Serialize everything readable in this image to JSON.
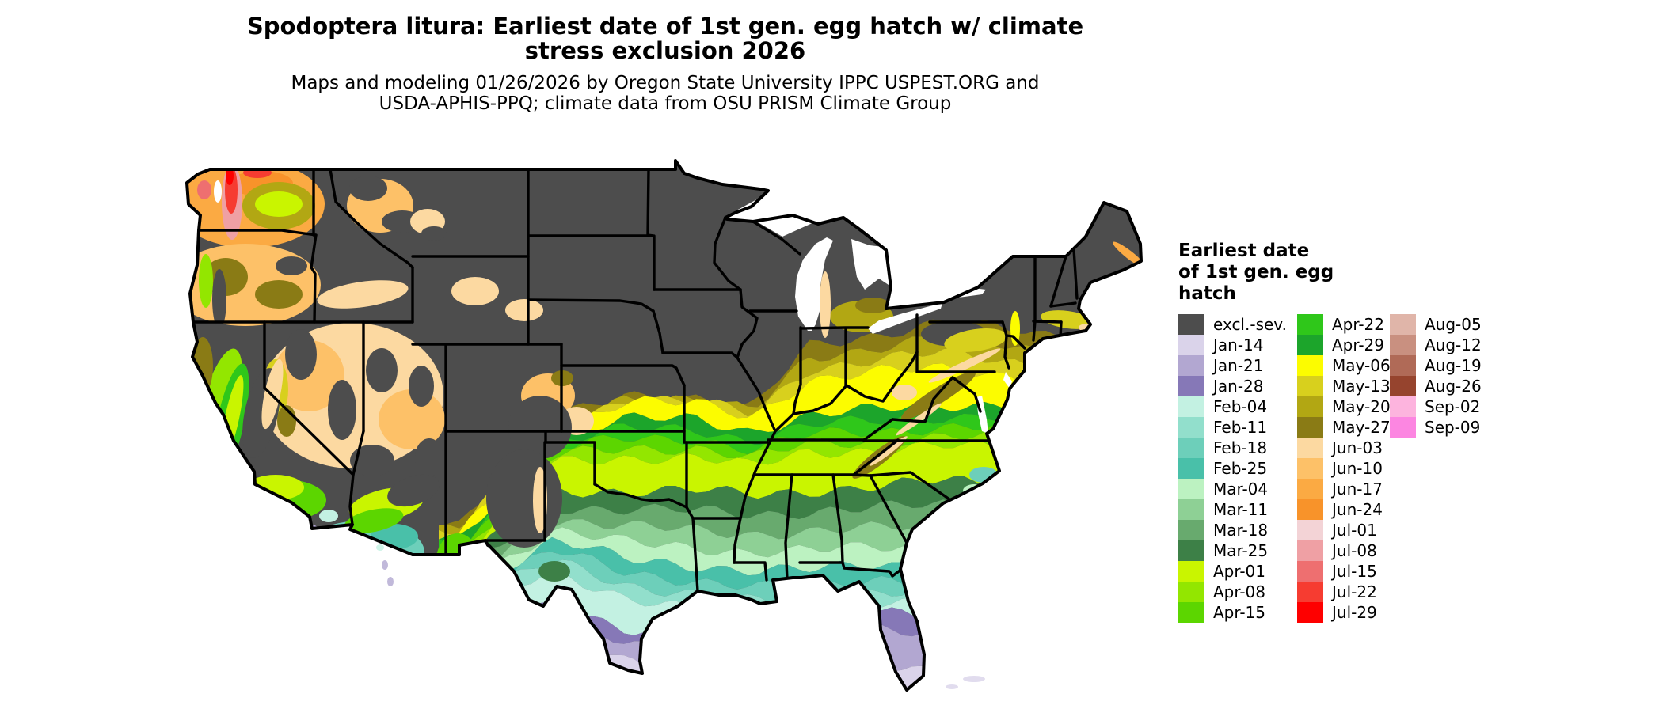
{
  "title": {
    "line1": "Spodoptera litura: Earliest date of 1st gen. egg hatch w/ climate",
    "line2": "stress exclusion 2026"
  },
  "subtitle": {
    "line1": "Maps and modeling 01/26/2026 by Oregon State University IPPC USPEST.ORG and",
    "line2": "USDA-APHIS-PPQ; climate data from OSU PRISM Climate Group"
  },
  "legend": {
    "title_lines": [
      "Earliest date",
      "of 1st gen. egg",
      "hatch"
    ],
    "columns": [
      [
        {
          "label": "excl.-sev.",
          "color": "#4d4d4d"
        },
        {
          "label": "Jan-14",
          "color": "#dad3ea"
        },
        {
          "label": "Jan-21",
          "color": "#b2a7d1"
        },
        {
          "label": "Jan-28",
          "color": "#8678b7"
        },
        {
          "label": "Feb-04",
          "color": "#c3f1e2"
        },
        {
          "label": "Feb-11",
          "color": "#92dfcc"
        },
        {
          "label": "Feb-18",
          "color": "#6dcfba"
        },
        {
          "label": "Feb-25",
          "color": "#49c0a9"
        },
        {
          "label": "Mar-04",
          "color": "#bcf2c1"
        },
        {
          "label": "Mar-11",
          "color": "#8ed095"
        },
        {
          "label": "Mar-18",
          "color": "#68aa6e"
        },
        {
          "label": "Mar-25",
          "color": "#3d8047"
        },
        {
          "label": "Apr-01",
          "color": "#c9f500"
        },
        {
          "label": "Apr-08",
          "color": "#93e600"
        },
        {
          "label": "Apr-15",
          "color": "#5cd600"
        }
      ],
      [
        {
          "label": "Apr-22",
          "color": "#2fc71a"
        },
        {
          "label": "Apr-29",
          "color": "#1ca52b"
        },
        {
          "label": "May-06",
          "color": "#fcfc00"
        },
        {
          "label": "May-13",
          "color": "#d8d01d"
        },
        {
          "label": "May-20",
          "color": "#b2a713"
        },
        {
          "label": "May-27",
          "color": "#8a7b15"
        },
        {
          "label": "Jun-03",
          "color": "#fcd9a1"
        },
        {
          "label": "Jun-10",
          "color": "#fdc168"
        },
        {
          "label": "Jun-17",
          "color": "#fbaa43"
        },
        {
          "label": "Jun-24",
          "color": "#f8932a"
        },
        {
          "label": "Jul-01",
          "color": "#f3d3d6"
        },
        {
          "label": "Jul-08",
          "color": "#efa0a4"
        },
        {
          "label": "Jul-15",
          "color": "#ee6f70"
        },
        {
          "label": "Jul-22",
          "color": "#f63c31"
        },
        {
          "label": "Jul-29",
          "color": "#fe0000"
        }
      ],
      [
        {
          "label": "Aug-05",
          "color": "#e0b5a9"
        },
        {
          "label": "Aug-12",
          "color": "#c99080"
        },
        {
          "label": "Aug-19",
          "color": "#b06a57"
        },
        {
          "label": "Aug-26",
          "color": "#96442e"
        },
        {
          "label": "Sep-02",
          "color": "#fdb4de"
        },
        {
          "label": "Sep-09",
          "color": "#fc86e1"
        }
      ]
    ]
  },
  "map": {
    "background": "#ffffff",
    "border_color": "#000000",
    "excluded_label": "excl.-sev.",
    "bands_north_to_south": [
      "May-27",
      "May-20",
      "May-13",
      "May-06",
      "Apr-29",
      "Apr-22",
      "Apr-15",
      "Apr-08",
      "Apr-01",
      "Mar-25",
      "Mar-18",
      "Mar-11",
      "Mar-04",
      "Feb-25",
      "Feb-18",
      "Feb-11",
      "Feb-04",
      "Jan-28",
      "Jan-21",
      "Jan-14"
    ]
  }
}
